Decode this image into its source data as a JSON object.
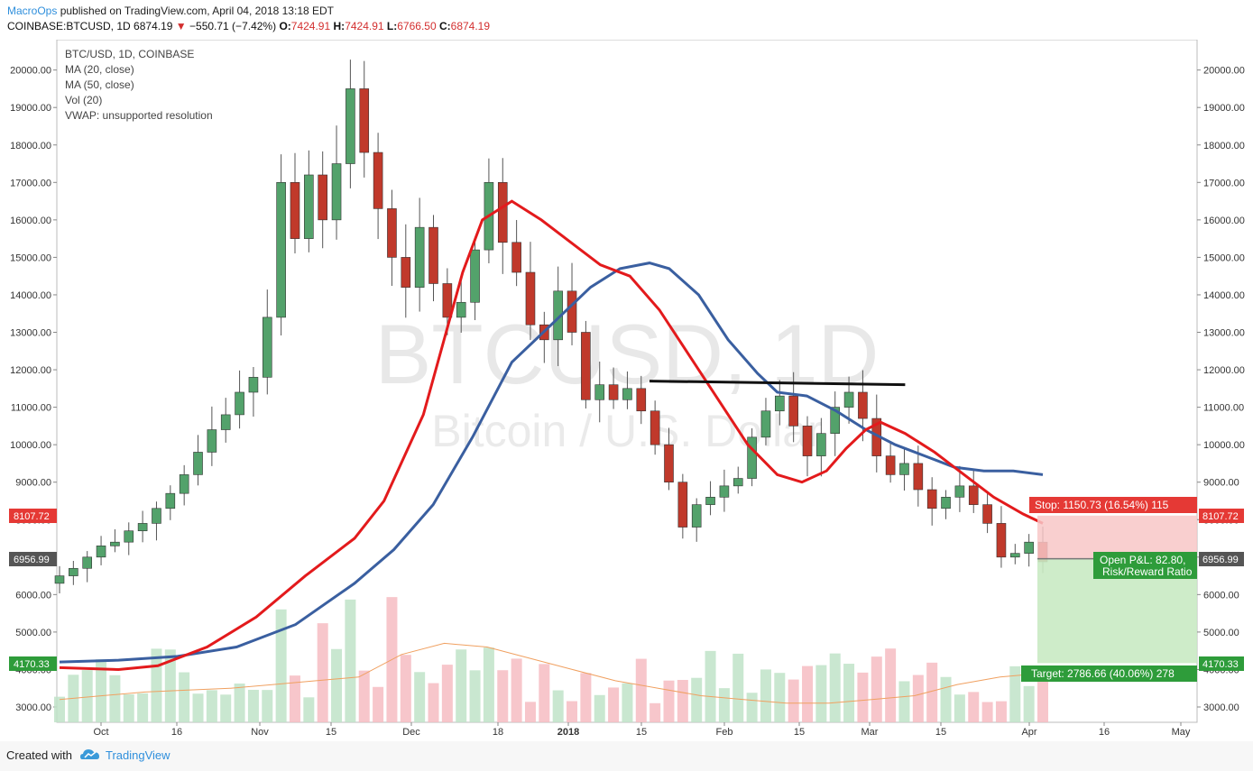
{
  "header": {
    "brand": "MacroOps",
    "published": " published on TradingView.com, April 04, 2018 13:18 EDT",
    "symbol": "COINBASE:BTCUSD, 1D",
    "last": "6874.19",
    "change": "−550.71 (−7.42%)",
    "o_label": "O:",
    "o": "7424.91",
    "h_label": "H:",
    "h": "7424.91",
    "l_label": "L:",
    "l": "6766.50",
    "c_label": "C:",
    "c": "6874.19"
  },
  "legend": [
    "BTC/USD, 1D, COINBASE",
    "MA (20, close)",
    "MA (50, close)",
    "Vol (20)",
    "VWAP: unsupported resolution"
  ],
  "watermark": {
    "line1": "BTCUSD, 1D",
    "line2": "Bitcoin / U.S. Dollar"
  },
  "badges": {
    "left_red": "8107.72",
    "left_gray": "6956.99",
    "left_green": "4170.33",
    "right_red": "8107.72",
    "right_gray": "6956.99",
    "right_green": "4170.33"
  },
  "position": {
    "stop": "Stop: 1150.73 (16.54%) 115",
    "pnl1": "Open P&L: 82.80,",
    "pnl2": "Risk/Reward Ratio",
    "target": "Target: 2786.66 (40.06%) 278"
  },
  "footer": {
    "created": "Created with",
    "tv": "TradingView"
  },
  "colors": {
    "up": "#53a26b",
    "down": "#c0392b",
    "ma20": "#e31a1c",
    "ma50": "#3a5fa0",
    "vwap": "#f0a060"
  },
  "chart_data": {
    "type": "candlestick",
    "title": "BTC/USD, 1D, COINBASE",
    "ylim": [
      2700,
      20400
    ],
    "yticks": [
      3000,
      4000,
      5000,
      6000,
      7000,
      8000,
      9000,
      10000,
      11000,
      12000,
      13000,
      14000,
      15000,
      16000,
      17000,
      18000,
      19000,
      20000
    ],
    "xticks": [
      "Oct",
      "16",
      "Nov",
      "15",
      "Dec",
      "18",
      "2018",
      "15",
      "Feb",
      "15",
      "Mar",
      "15",
      "Apr",
      "16",
      "May"
    ],
    "candles": [
      [
        6300,
        6500
      ],
      [
        6500,
        6700
      ],
      [
        6700,
        7000
      ],
      [
        7000,
        7300
      ],
      [
        7300,
        7400
      ],
      [
        7400,
        7700
      ],
      [
        7700,
        7900
      ],
      [
        7900,
        8300
      ],
      [
        8300,
        8700
      ],
      [
        8700,
        9200
      ],
      [
        9200,
        9800
      ],
      [
        9800,
        10400
      ],
      [
        10400,
        10800
      ],
      [
        10800,
        11400
      ],
      [
        11400,
        11800
      ],
      [
        11800,
        13400
      ],
      [
        13400,
        17000
      ],
      [
        17000,
        15500
      ],
      [
        15500,
        17200
      ],
      [
        17200,
        16000
      ],
      [
        16000,
        17500
      ],
      [
        17500,
        19500
      ],
      [
        19500,
        17800
      ],
      [
        17800,
        16300
      ],
      [
        16300,
        15000
      ],
      [
        15000,
        14200
      ],
      [
        14200,
        15800
      ],
      [
        15800,
        14300
      ],
      [
        14300,
        13400
      ],
      [
        13400,
        13800
      ],
      [
        13800,
        15200
      ],
      [
        15200,
        17000
      ],
      [
        17000,
        15400
      ],
      [
        15400,
        14600
      ],
      [
        14600,
        13200
      ],
      [
        13200,
        12800
      ],
      [
        12800,
        14100
      ],
      [
        14100,
        13000
      ],
      [
        13000,
        11200
      ],
      [
        11200,
        11600
      ],
      [
        11600,
        11200
      ],
      [
        11200,
        11500
      ],
      [
        11500,
        10900
      ],
      [
        10900,
        10000
      ],
      [
        10000,
        9000
      ],
      [
        9000,
        7800
      ],
      [
        7800,
        8400
      ],
      [
        8400,
        8600
      ],
      [
        8600,
        8900
      ],
      [
        8900,
        9100
      ],
      [
        9100,
        10200
      ],
      [
        10200,
        10900
      ],
      [
        10900,
        11300
      ],
      [
        11300,
        10500
      ],
      [
        10500,
        9700
      ],
      [
        9700,
        10300
      ],
      [
        10300,
        11000
      ],
      [
        11000,
        11400
      ],
      [
        11400,
        10700
      ],
      [
        10700,
        9700
      ],
      [
        9700,
        9200
      ],
      [
        9200,
        9500
      ],
      [
        9500,
        8800
      ],
      [
        8800,
        8300
      ],
      [
        8300,
        8600
      ],
      [
        8600,
        8900
      ],
      [
        8900,
        8400
      ],
      [
        8400,
        7900
      ],
      [
        7900,
        7000
      ],
      [
        7000,
        7100
      ],
      [
        7100,
        7400
      ],
      [
        7400,
        6874
      ]
    ],
    "ma20": [
      [
        0,
        4050
      ],
      [
        0.06,
        4000
      ],
      [
        0.1,
        4100
      ],
      [
        0.15,
        4600
      ],
      [
        0.2,
        5400
      ],
      [
        0.25,
        6500
      ],
      [
        0.3,
        7500
      ],
      [
        0.33,
        8500
      ],
      [
        0.37,
        10800
      ],
      [
        0.41,
        14600
      ],
      [
        0.43,
        16000
      ],
      [
        0.46,
        16500
      ],
      [
        0.49,
        16000
      ],
      [
        0.52,
        15400
      ],
      [
        0.55,
        14800
      ],
      [
        0.58,
        14500
      ],
      [
        0.61,
        13600
      ],
      [
        0.64,
        12400
      ],
      [
        0.67,
        11200
      ],
      [
        0.7,
        10000
      ],
      [
        0.73,
        9200
      ],
      [
        0.755,
        9000
      ],
      [
        0.78,
        9300
      ],
      [
        0.8,
        9900
      ],
      [
        0.82,
        10400
      ],
      [
        0.835,
        10600
      ],
      [
        0.86,
        10300
      ],
      [
        0.89,
        9800
      ],
      [
        0.92,
        9200
      ],
      [
        0.95,
        8600
      ],
      [
        0.98,
        8150
      ],
      [
        1,
        7900
      ]
    ],
    "ma50": [
      [
        0,
        4200
      ],
      [
        0.06,
        4250
      ],
      [
        0.12,
        4350
      ],
      [
        0.18,
        4600
      ],
      [
        0.24,
        5200
      ],
      [
        0.3,
        6300
      ],
      [
        0.34,
        7200
      ],
      [
        0.38,
        8400
      ],
      [
        0.42,
        10200
      ],
      [
        0.46,
        12200
      ],
      [
        0.5,
        13200
      ],
      [
        0.54,
        14200
      ],
      [
        0.57,
        14700
      ],
      [
        0.6,
        14850
      ],
      [
        0.62,
        14700
      ],
      [
        0.65,
        14000
      ],
      [
        0.68,
        12800
      ],
      [
        0.71,
        11900
      ],
      [
        0.73,
        11400
      ],
      [
        0.76,
        11300
      ],
      [
        0.79,
        10900
      ],
      [
        0.82,
        10400
      ],
      [
        0.85,
        10000
      ],
      [
        0.88,
        9700
      ],
      [
        0.91,
        9400
      ],
      [
        0.94,
        9300
      ],
      [
        0.97,
        9300
      ],
      [
        1,
        9200
      ]
    ],
    "resistance": {
      "from": 0.6,
      "to": 0.86,
      "value": 11650
    },
    "volume_scale": [
      2700,
      7500
    ],
    "volume_avg": [
      3200,
      3300,
      3400,
      3450,
      3500,
      3600,
      3700,
      3800,
      4400,
      4700,
      4600,
      4300,
      4000,
      3700,
      3500,
      3300,
      3200,
      3100,
      3100,
      3200,
      3300,
      3600,
      3800,
      3900
    ]
  }
}
